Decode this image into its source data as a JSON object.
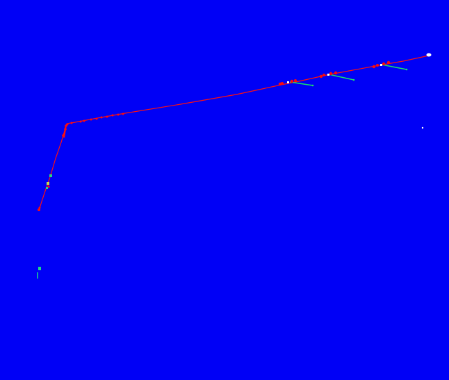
{
  "scene": {
    "background_color": "#0000f6",
    "pipe_color": "#ff1010",
    "branch_color": "#19e36a",
    "marker_color": "#ff0a0a",
    "highlight_color": "#ffffff",
    "sensor_color": "#1cd88a"
  }
}
